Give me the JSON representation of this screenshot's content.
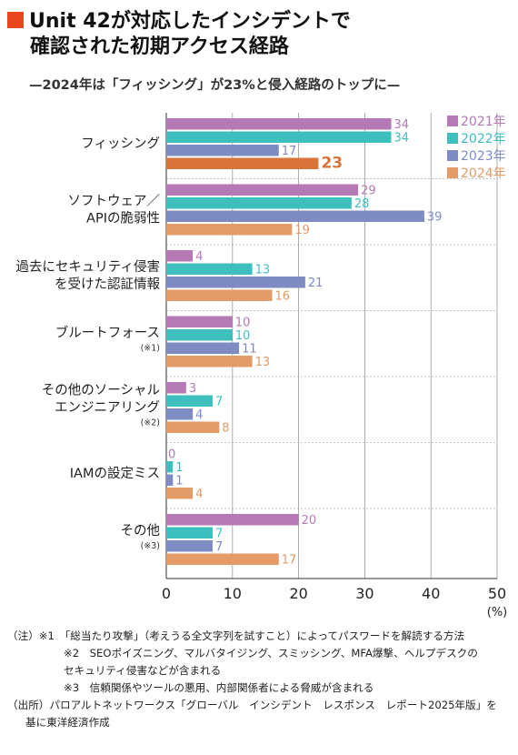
{
  "title": {
    "line1": "Unit 42が対応したインシデントで",
    "line2": "確認された初期アクセス経路",
    "subtitle": "—2024年は「フィッシング」が23%と侵入経路のトップに—",
    "marker_color": "#e8461e"
  },
  "chart_data": {
    "type": "bar",
    "orientation": "horizontal",
    "categories": [
      [
        "フィッシング"
      ],
      [
        "ソフトウェア／",
        "APIの脆弱性"
      ],
      [
        "過去にセキュリティ侵害",
        "を受けた認証情報"
      ],
      [
        "ブルートフォース",
        "(※1)"
      ],
      [
        "その他のソーシャル",
        "エンジニアリング",
        "(※2)"
      ],
      [
        "IAMの設定ミス"
      ],
      [
        "その他",
        "(※3)"
      ]
    ],
    "series": [
      {
        "name": "2021年",
        "color": "#b57ab5",
        "values": [
          34,
          29,
          4,
          10,
          3,
          0,
          20
        ]
      },
      {
        "name": "2022年",
        "color": "#3dbfbe",
        "values": [
          34,
          28,
          13,
          10,
          7,
          1,
          7
        ]
      },
      {
        "name": "2023年",
        "color": "#7f8cc4",
        "values": [
          17,
          39,
          21,
          11,
          4,
          1,
          7
        ]
      },
      {
        "name": "2024年",
        "color": "#e39b68",
        "values": [
          23,
          19,
          16,
          13,
          8,
          4,
          17
        ]
      }
    ],
    "highlight": {
      "category_index": 0,
      "series_index": 3,
      "color": "#d8733a"
    },
    "xlim": [
      0,
      50
    ],
    "xticks": [
      0,
      10,
      20,
      30,
      40,
      50
    ],
    "x_unit": "(%)",
    "grid": true,
    "legend_position": "top-right"
  },
  "notes": {
    "n1": "（注）※1　「総当たり攻撃」（考えうる全文字列を試すこと）によってパスワードを解読する方法",
    "n2a": "※2　SEOポイズニング、マルバタイジング、スミッシング、MFA爆撃、ヘルプデスクの",
    "n2b": "セキュリティ侵害などが含まれる",
    "n3": "※3　信頼関係やツールの悪用、内部関係者による脅威が含まれる",
    "source_a": "（出所）パロアルトネットワークス「グローバル　インシデント　レスポンス　レポート2025年版」を",
    "source_b": "基に東洋経済作成"
  }
}
